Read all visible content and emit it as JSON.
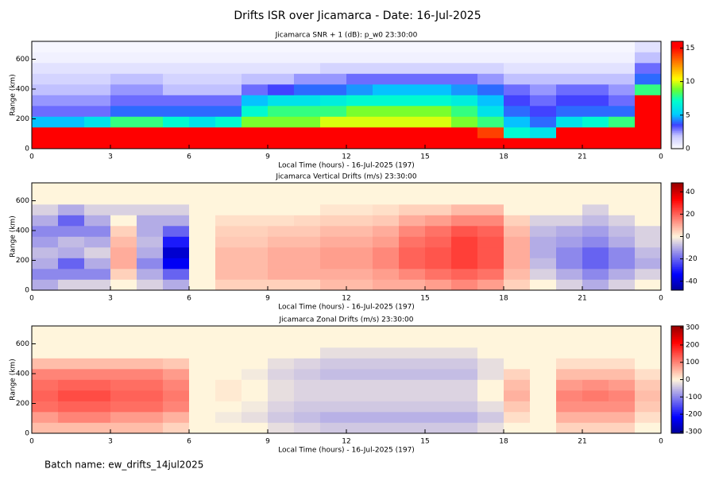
{
  "title": "Drifts ISR over Jicamarca - Date: 16-Jul-2025",
  "footer": "Batch name: ew_drifts_14jul2025",
  "chart_data": [
    {
      "type": "heatmap",
      "title": "Jicamarca SNR + 1 (dB): p_w0 23:30:00",
      "xlabel": "Local Time (hours) - 16-Jul-2025 (197)",
      "ylabel": "Range (km)",
      "colormap": "rainbow",
      "xlim": [
        0,
        24
      ],
      "ylim": [
        0,
        720
      ],
      "xticks": [
        0,
        3,
        6,
        9,
        12,
        15,
        18,
        21,
        {
          "value": 24,
          "label": "0"
        }
      ],
      "yticks": [
        0,
        200,
        400,
        600
      ],
      "xbins": [
        0,
        1,
        2,
        3,
        4,
        5,
        6,
        7,
        8,
        9,
        10,
        11,
        12,
        13,
        14,
        15,
        16,
        17,
        18,
        19,
        20,
        21,
        22,
        23,
        24
      ],
      "ybins": [
        0,
        72,
        144,
        216,
        288,
        360,
        432,
        504,
        576,
        648,
        720
      ],
      "zlim": [
        0,
        16
      ],
      "zticks": [
        0,
        5,
        10,
        15
      ],
      "values": [
        [
          16,
          16,
          5,
          3,
          2.5,
          2,
          1.5,
          1,
          0.5,
          0.3
        ],
        [
          16,
          16,
          5,
          3,
          2.5,
          2,
          1.5,
          1,
          0.5,
          0.3
        ],
        [
          16,
          16,
          6,
          3,
          2.5,
          2,
          1.5,
          1,
          0.5,
          0.3
        ],
        [
          16,
          16,
          8,
          4,
          3,
          2.5,
          2,
          1,
          0.5,
          0.3
        ],
        [
          16,
          16,
          8,
          4,
          3,
          2.5,
          2,
          1,
          0.5,
          0.3
        ],
        [
          16,
          16,
          7,
          4,
          3,
          2,
          1.5,
          1,
          0.5,
          0.3
        ],
        [
          16,
          16,
          6,
          4,
          3,
          2,
          1.5,
          1,
          0.5,
          0.3
        ],
        [
          16,
          16,
          7,
          4,
          3,
          2,
          1.5,
          1,
          0.5,
          0.3
        ],
        [
          16,
          16,
          9,
          7,
          5,
          3,
          2,
          1,
          0.5,
          0.3
        ],
        [
          16,
          16,
          9,
          8,
          6,
          3.5,
          2,
          1,
          0.5,
          0.3
        ],
        [
          16,
          16,
          9,
          8,
          6,
          4,
          2.5,
          1,
          0.5,
          0.3
        ],
        [
          16,
          16,
          10,
          8,
          6.5,
          4,
          2.5,
          1.5,
          0.5,
          0.3
        ],
        [
          16,
          16,
          10,
          9,
          7,
          4.5,
          3,
          1.5,
          0.5,
          0.3
        ],
        [
          16,
          16,
          10,
          9,
          7,
          5,
          3,
          1.5,
          0.5,
          0.3
        ],
        [
          16,
          16,
          10,
          9,
          7,
          5,
          3,
          1.5,
          0.5,
          0.3
        ],
        [
          16,
          16,
          10,
          9,
          7,
          5,
          3,
          1.5,
          0.5,
          0.3
        ],
        [
          16,
          16,
          9,
          8,
          6.5,
          4.5,
          3,
          1.5,
          0.5,
          0.3
        ],
        [
          16,
          14,
          8,
          6,
          5,
          4,
          2.5,
          1.5,
          0.5,
          0.3
        ],
        [
          16,
          7,
          5,
          4,
          3.5,
          3,
          2,
          1,
          0.5,
          0.3
        ],
        [
          16,
          6,
          4,
          3.5,
          3,
          2.5,
          2,
          1,
          0.5,
          0.3
        ],
        [
          16,
          16,
          6,
          4,
          3.5,
          3,
          2,
          1,
          0.5,
          0.3
        ],
        [
          16,
          16,
          7,
          4,
          3.5,
          3,
          2,
          1,
          0.5,
          0.3
        ],
        [
          16,
          16,
          8,
          4,
          3,
          2.5,
          2,
          1,
          0.5,
          0.3
        ],
        [
          16,
          16,
          16,
          16,
          16,
          8,
          4,
          3,
          2,
          1
        ]
      ]
    },
    {
      "type": "heatmap",
      "title": "Jicamarca Vertical Drifts (m/s) 23:30:00",
      "xlabel": "Local Time (hours) - 16-Jul-2025 (197)",
      "ylabel": "Range (km)",
      "colormap": "bwr",
      "xlim": [
        0,
        24
      ],
      "ylim": [
        0,
        720
      ],
      "xticks": [
        0,
        3,
        6,
        9,
        12,
        15,
        18,
        21,
        {
          "value": 24,
          "label": "0"
        }
      ],
      "yticks": [
        0,
        200,
        400,
        600
      ],
      "xbins": [
        0,
        1,
        2,
        3,
        4,
        5,
        6,
        7,
        8,
        9,
        10,
        11,
        12,
        13,
        14,
        15,
        16,
        17,
        18,
        19,
        20,
        21,
        22,
        23,
        24
      ],
      "ybins": [
        0,
        72,
        144,
        216,
        288,
        360,
        432,
        504,
        576,
        648,
        720
      ],
      "zlim": [
        -48,
        48
      ],
      "zticks": [
        -40,
        -20,
        0,
        20,
        40
      ],
      "values": [
        [
          -10,
          -15,
          -10,
          -8,
          -12,
          -15,
          -10,
          -5,
          0,
          0
        ],
        [
          -5,
          -15,
          -20,
          -10,
          -8,
          -15,
          -20,
          -10,
          0,
          0
        ],
        [
          -5,
          -15,
          -10,
          -5,
          -10,
          -15,
          -10,
          -5,
          0,
          0
        ],
        [
          0,
          5,
          10,
          10,
          8,
          5,
          0,
          -5,
          0,
          0
        ],
        [
          -5,
          -10,
          -15,
          -10,
          -8,
          -10,
          -10,
          -5,
          0,
          0
        ],
        [
          -10,
          -20,
          -35,
          -40,
          -30,
          -20,
          -10,
          -5,
          0,
          0
        ],
        [
          0,
          0,
          0,
          0,
          0,
          0,
          0,
          0,
          0,
          0
        ],
        [
          5,
          8,
          8,
          8,
          6,
          5,
          3,
          0,
          0,
          0
        ],
        [
          5,
          8,
          8,
          8,
          6,
          5,
          3,
          0,
          0,
          0
        ],
        [
          5,
          10,
          10,
          10,
          8,
          6,
          3,
          0,
          0,
          0
        ],
        [
          5,
          10,
          10,
          10,
          8,
          6,
          4,
          0,
          0,
          0
        ],
        [
          8,
          10,
          12,
          12,
          10,
          8,
          5,
          2,
          0,
          0
        ],
        [
          8,
          10,
          12,
          12,
          10,
          8,
          5,
          2,
          0,
          0
        ],
        [
          10,
          12,
          15,
          15,
          12,
          10,
          6,
          3,
          0,
          0
        ],
        [
          10,
          15,
          20,
          20,
          18,
          15,
          10,
          5,
          0,
          0
        ],
        [
          12,
          18,
          22,
          22,
          20,
          18,
          12,
          5,
          0,
          0
        ],
        [
          15,
          20,
          25,
          25,
          25,
          22,
          15,
          8,
          0,
          0
        ],
        [
          12,
          18,
          22,
          22,
          22,
          20,
          15,
          8,
          0,
          0
        ],
        [
          5,
          8,
          10,
          10,
          10,
          8,
          5,
          0,
          0,
          0
        ],
        [
          0,
          -5,
          -8,
          -10,
          -10,
          -8,
          -5,
          0,
          0,
          0
        ],
        [
          -5,
          -10,
          -15,
          -15,
          -12,
          -10,
          -5,
          0,
          0,
          0
        ],
        [
          -10,
          -15,
          -20,
          -20,
          -15,
          -12,
          -8,
          -5,
          0,
          0
        ],
        [
          -5,
          -10,
          -15,
          -15,
          -10,
          -8,
          -5,
          0,
          0,
          0
        ],
        [
          0,
          -5,
          -10,
          -8,
          -5,
          -5,
          0,
          0,
          0,
          0
        ]
      ]
    },
    {
      "type": "heatmap",
      "title": "Jicamarca Zonal Drifts (m/s) 23:30:00",
      "xlabel": "Local Time (hours) - 16-Jul-2025 (197)",
      "ylabel": "Range (km)",
      "colormap": "bwr",
      "xlim": [
        0,
        24
      ],
      "ylim": [
        0,
        720
      ],
      "xticks": [
        0,
        3,
        6,
        9,
        12,
        15,
        18,
        21,
        {
          "value": 24,
          "label": "0"
        }
      ],
      "yticks": [
        0,
        200,
        400,
        600
      ],
      "xbins": [
        0,
        1,
        2,
        3,
        4,
        5,
        6,
        7,
        8,
        9,
        10,
        11,
        12,
        13,
        14,
        15,
        16,
        17,
        18,
        19,
        20,
        21,
        22,
        23,
        24
      ],
      "ybins": [
        0,
        72,
        144,
        216,
        288,
        360,
        432,
        504,
        576,
        648,
        720
      ],
      "zlim": [
        -310,
        310
      ],
      "zticks": [
        -300,
        -200,
        -100,
        0,
        100,
        200,
        300
      ],
      "values": [
        [
          50,
          80,
          120,
          130,
          120,
          100,
          50,
          0,
          0,
          0
        ],
        [
          50,
          100,
          130,
          150,
          130,
          100,
          50,
          0,
          0,
          0
        ],
        [
          50,
          100,
          130,
          150,
          130,
          100,
          50,
          0,
          0,
          0
        ],
        [
          50,
          80,
          120,
          130,
          120,
          100,
          50,
          0,
          0,
          0
        ],
        [
          50,
          80,
          120,
          130,
          120,
          100,
          50,
          0,
          0,
          0
        ],
        [
          30,
          60,
          100,
          110,
          100,
          80,
          40,
          0,
          0,
          0
        ],
        [
          0,
          0,
          0,
          0,
          0,
          0,
          0,
          0,
          0,
          0
        ],
        [
          0,
          -10,
          0,
          10,
          10,
          0,
          0,
          0,
          0,
          0
        ],
        [
          0,
          -20,
          -10,
          0,
          0,
          -10,
          0,
          0,
          0,
          0
        ],
        [
          -20,
          -40,
          -30,
          -20,
          -20,
          -30,
          -20,
          0,
          0,
          0
        ],
        [
          -30,
          -50,
          -40,
          -30,
          -30,
          -40,
          -30,
          0,
          0,
          0
        ],
        [
          -40,
          -60,
          -40,
          -30,
          -30,
          -50,
          -40,
          -20,
          0,
          0
        ],
        [
          -40,
          -60,
          -40,
          -30,
          -30,
          -50,
          -40,
          -20,
          0,
          0
        ],
        [
          -40,
          -60,
          -40,
          -30,
          -30,
          -50,
          -40,
          -20,
          0,
          0
        ],
        [
          -40,
          -60,
          -40,
          -30,
          -30,
          -50,
          -40,
          -20,
          0,
          0
        ],
        [
          -40,
          -60,
          -40,
          -30,
          -30,
          -50,
          -40,
          -20,
          0,
          0
        ],
        [
          -40,
          -60,
          -40,
          -30,
          -30,
          -50,
          -40,
          -20,
          0,
          0
        ],
        [
          -20,
          -40,
          -20,
          0,
          0,
          -20,
          -20,
          0,
          0,
          0
        ],
        [
          0,
          20,
          40,
          60,
          50,
          30,
          0,
          0,
          0,
          0
        ],
        [
          0,
          0,
          0,
          0,
          0,
          0,
          0,
          0,
          0,
          0
        ],
        [
          30,
          60,
          90,
          100,
          80,
          50,
          20,
          0,
          0,
          0
        ],
        [
          30,
          60,
          90,
          110,
          90,
          50,
          20,
          0,
          0,
          0
        ],
        [
          30,
          60,
          90,
          100,
          80,
          50,
          20,
          0,
          0,
          0
        ],
        [
          0,
          20,
          40,
          50,
          40,
          20,
          0,
          0,
          0,
          0
        ]
      ]
    }
  ]
}
